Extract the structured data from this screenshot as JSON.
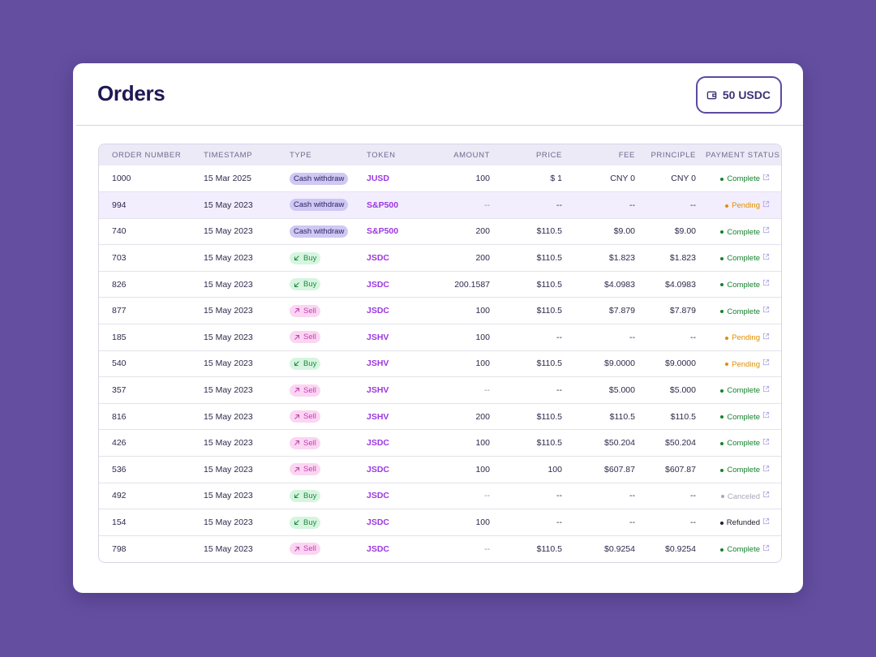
{
  "header": {
    "title": "Orders",
    "balance": "50 USDC",
    "balance_icon": "wallet-icon"
  },
  "table": {
    "columns": [
      "ORDER NUMBER",
      "TIMESTAMP",
      "TYPE",
      "TOKEN",
      "AMOUNT",
      "PRICE",
      "FEE",
      "PRINCIPLE",
      "PAYMENT STATUS"
    ],
    "rows": [
      {
        "order": "1000",
        "timestamp": "15 Mar 2025",
        "type": "Cash withdraw",
        "type_kind": "cash",
        "token": "JUSD",
        "amount": "100",
        "price": "$ 1",
        "fee": "CNY 0",
        "principle": "CNY 0",
        "status": "Complete",
        "status_kind": "complete",
        "highlight": false
      },
      {
        "order": "994",
        "timestamp": "15 May 2023",
        "type": "Cash withdraw",
        "type_kind": "cash",
        "token": "S&P500",
        "amount": "--",
        "price": "--",
        "fee": "--",
        "principle": "--",
        "status": "Pending",
        "status_kind": "pending",
        "highlight": true
      },
      {
        "order": "740",
        "timestamp": "15 May 2023",
        "type": "Cash withdraw",
        "type_kind": "cash",
        "token": "S&P500",
        "amount": "200",
        "price": "$110.5",
        "fee": "$9.00",
        "principle": "$9.00",
        "status": "Complete",
        "status_kind": "complete",
        "highlight": false
      },
      {
        "order": "703",
        "timestamp": "15 May 2023",
        "type": "Buy",
        "type_kind": "buy",
        "token": "JSDC",
        "amount": "200",
        "price": "$110.5",
        "fee": "$1.823",
        "principle": "$1.823",
        "status": "Complete",
        "status_kind": "complete",
        "highlight": false
      },
      {
        "order": "826",
        "timestamp": "15 May 2023",
        "type": "Buy",
        "type_kind": "buy",
        "token": "JSDC",
        "amount": "200.1587",
        "price": "$110.5",
        "fee": "$4.0983",
        "principle": "$4.0983",
        "status": "Complete",
        "status_kind": "complete",
        "highlight": false
      },
      {
        "order": "877",
        "timestamp": "15 May 2023",
        "type": "Sell",
        "type_kind": "sell",
        "token": "JSDC",
        "amount": "100",
        "price": "$110.5",
        "fee": "$7.879",
        "principle": "$7.879",
        "status": "Complete",
        "status_kind": "complete",
        "highlight": false
      },
      {
        "order": "185",
        "timestamp": "15 May 2023",
        "type": "Sell",
        "type_kind": "sell",
        "token": "JSHV",
        "amount": "100",
        "price": "--",
        "fee": "--",
        "principle": "--",
        "status": "Pending",
        "status_kind": "pending",
        "highlight": false
      },
      {
        "order": "540",
        "timestamp": "15 May 2023",
        "type": "Buy",
        "type_kind": "buy",
        "token": "JSHV",
        "amount": "100",
        "price": "$110.5",
        "fee": "$9.0000",
        "principle": "$9.0000",
        "status": "Pending",
        "status_kind": "pending",
        "highlight": false
      },
      {
        "order": "357",
        "timestamp": "15 May 2023",
        "type": "Sell",
        "type_kind": "sell",
        "token": "JSHV",
        "amount": "--",
        "price": "--",
        "fee": "$5.000",
        "principle": "$5.000",
        "status": "Complete",
        "status_kind": "complete",
        "highlight": false
      },
      {
        "order": "816",
        "timestamp": "15 May 2023",
        "type": "Sell",
        "type_kind": "sell",
        "token": "JSHV",
        "amount": "200",
        "price": "$110.5",
        "fee": "$110.5",
        "principle": "$110.5",
        "status": "Complete",
        "status_kind": "complete",
        "highlight": false
      },
      {
        "order": "426",
        "timestamp": "15 May 2023",
        "type": "Sell",
        "type_kind": "sell",
        "token": "JSDC",
        "amount": "100",
        "price": "$110.5",
        "fee": "$50.204",
        "principle": "$50.204",
        "status": "Complete",
        "status_kind": "complete",
        "highlight": false
      },
      {
        "order": "536",
        "timestamp": "15 May 2023",
        "type": "Sell",
        "type_kind": "sell",
        "token": "JSDC",
        "amount": "100",
        "price": "100",
        "fee": "$607.87",
        "principle": "$607.87",
        "status": "Complete",
        "status_kind": "complete",
        "highlight": false
      },
      {
        "order": "492",
        "timestamp": "15 May 2023",
        "type": "Buy",
        "type_kind": "buy",
        "token": "JSDC",
        "amount": "--",
        "price": "--",
        "fee": "--",
        "principle": "--",
        "status": "Canceled",
        "status_kind": "canceled",
        "highlight": false
      },
      {
        "order": "154",
        "timestamp": "15 May 2023",
        "type": "Buy",
        "type_kind": "buy",
        "token": "JSDC",
        "amount": "100",
        "price": "--",
        "fee": "--",
        "principle": "--",
        "status": "Refunded",
        "status_kind": "refunded",
        "highlight": false
      },
      {
        "order": "798",
        "timestamp": "15 May 2023",
        "type": "Sell",
        "type_kind": "sell",
        "token": "JSDC",
        "amount": "--",
        "price": "$110.5",
        "fee": "$0.9254",
        "principle": "$0.9254",
        "status": "Complete",
        "status_kind": "complete",
        "highlight": false
      }
    ]
  },
  "colors": {
    "background": "#644ea0",
    "title": "#1f1854",
    "token": "#9b38e0",
    "complete": "#17822f",
    "pending": "#e08e00",
    "canceled": "#a9a8b8",
    "refunded": "#222033",
    "highlight_row": "#f3eefe"
  }
}
